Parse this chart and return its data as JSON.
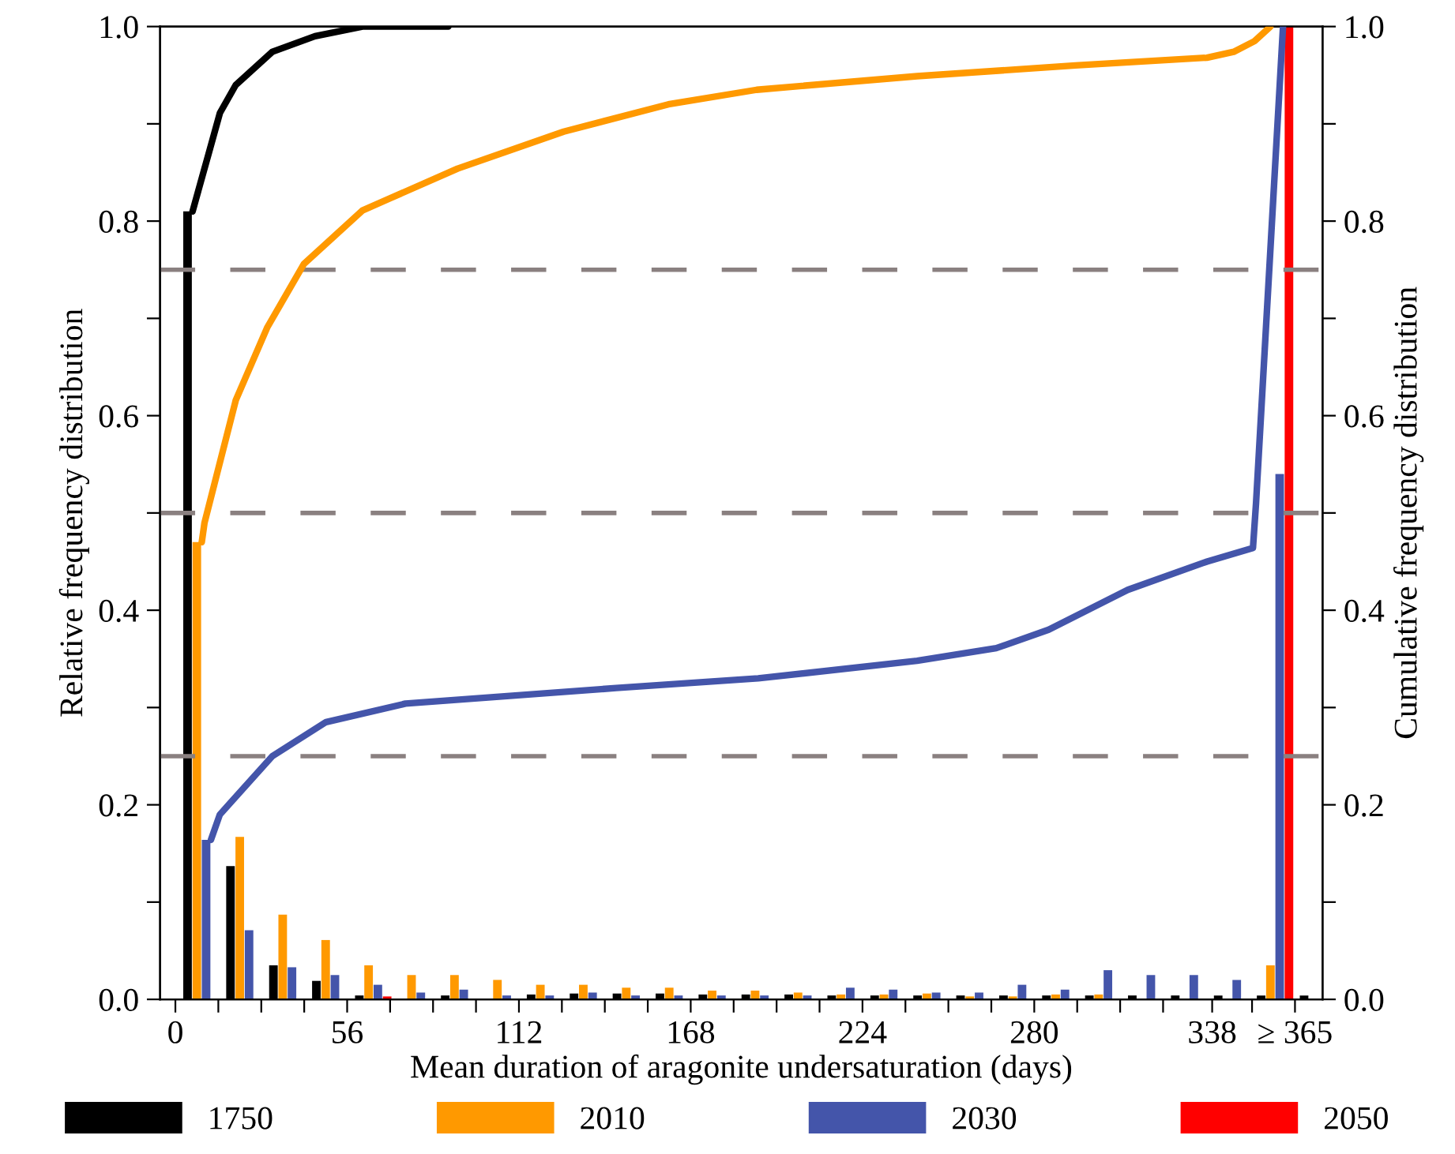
{
  "chart_data": {
    "type": "bar",
    "xlabel": "Mean duration of aragonite undersaturation (days)",
    "ylabel": "Relative frequency distribution",
    "y2label": "Cumulative frequency distribution",
    "x": [
      8.5,
      22.5,
      36.5,
      50.5,
      64.5,
      78.5,
      92.5,
      106.5,
      120.5,
      134.5,
      148.5,
      162.5,
      176.5,
      190.5,
      204.5,
      218.5,
      232.5,
      246.5,
      260.5,
      274.5,
      288.5,
      302.5,
      316.5,
      330.5,
      344.5,
      358.5,
      372.5
    ],
    "xlim": [
      -5,
      374
    ],
    "xticks": [
      {
        "value": 0,
        "label": "0"
      },
      {
        "value": 14,
        "label": null
      },
      {
        "value": 28,
        "label": null
      },
      {
        "value": 42,
        "label": null
      },
      {
        "value": 56,
        "label": "56"
      },
      {
        "value": 70,
        "label": null
      },
      {
        "value": 84,
        "label": null
      },
      {
        "value": 98,
        "label": null
      },
      {
        "value": 112,
        "label": "112"
      },
      {
        "value": 126,
        "label": null
      },
      {
        "value": 140,
        "label": null
      },
      {
        "value": 154,
        "label": null
      },
      {
        "value": 168,
        "label": "168"
      },
      {
        "value": 182,
        "label": null
      },
      {
        "value": 196,
        "label": null
      },
      {
        "value": 210,
        "label": null
      },
      {
        "value": 224,
        "label": "224"
      },
      {
        "value": 238,
        "label": null
      },
      {
        "value": 252,
        "label": null
      },
      {
        "value": 266,
        "label": null
      },
      {
        "value": 280,
        "label": "280"
      },
      {
        "value": 294,
        "label": null
      },
      {
        "value": 308,
        "label": null
      },
      {
        "value": 322,
        "label": null
      },
      {
        "value": 338,
        "label": "338"
      },
      {
        "value": 351,
        "label": null
      },
      {
        "value": 365,
        "label": "≥ 365"
      }
    ],
    "ylim": [
      0,
      1
    ],
    "yticks": [
      {
        "value": 0,
        "label": "0.0"
      },
      {
        "value": 0.1,
        "label": null
      },
      {
        "value": 0.2,
        "label": "0.2"
      },
      {
        "value": 0.3,
        "label": null
      },
      {
        "value": 0.4,
        "label": "0.4"
      },
      {
        "value": 0.5,
        "label": null
      },
      {
        "value": 0.6,
        "label": "0.6"
      },
      {
        "value": 0.7,
        "label": null
      },
      {
        "value": 0.8,
        "label": "0.8"
      },
      {
        "value": 0.9,
        "label": null
      },
      {
        "value": 1,
        "label": "1.0"
      }
    ],
    "y2lim": [
      0,
      1
    ],
    "y2ticks": [
      {
        "value": 0,
        "label": "0.0"
      },
      {
        "value": 0.1,
        "label": null
      },
      {
        "value": 0.2,
        "label": "0.2"
      },
      {
        "value": 0.3,
        "label": null
      },
      {
        "value": 0.4,
        "label": "0.4"
      },
      {
        "value": 0.5,
        "label": null
      },
      {
        "value": 0.6,
        "label": "0.6"
      },
      {
        "value": 0.7,
        "label": null
      },
      {
        "value": 0.8,
        "label": "0.8"
      },
      {
        "value": 0.9,
        "label": null
      },
      {
        "value": 1,
        "label": "1.0"
      }
    ],
    "legend": "bottom",
    "grid": false,
    "series": [
      {
        "name": "1750",
        "color": "#000000",
        "values": [
          0.81,
          0.137,
          0.035,
          0.019,
          0.004,
          null,
          0.004,
          null,
          0.005,
          0.006,
          0.006,
          0.006,
          0.005,
          0.005,
          0.005,
          0.004,
          0.004,
          0.004,
          0.004,
          0.004,
          0.004,
          0.004,
          0.004,
          0.004,
          0.004,
          0.004,
          0.004
        ]
      },
      {
        "name": "2010",
        "color": "#ff9900",
        "values": [
          0.47,
          0.167,
          0.087,
          0.061,
          0.035,
          0.025,
          0.025,
          0.02,
          0.015,
          0.015,
          0.012,
          0.012,
          0.009,
          0.009,
          0.007,
          0.005,
          0.005,
          0.006,
          0.003,
          0.003,
          0.005,
          0.005,
          0,
          0,
          0,
          0.035,
          0
        ]
      },
      {
        "name": "2030",
        "color": "#4455aa",
        "values": [
          0.164,
          0.071,
          0.033,
          0.025,
          0.015,
          0.007,
          0.01,
          0.004,
          0.004,
          0.007,
          0.004,
          0.004,
          0.004,
          0.004,
          0.004,
          0.012,
          0.01,
          0.007,
          0.007,
          0.015,
          0.01,
          0.03,
          0.025,
          0.025,
          0.02,
          0.54,
          0
        ]
      },
      {
        "name": "2050",
        "color": "#ff0000",
        "values": [
          0,
          0,
          0,
          0,
          0.003,
          0,
          0,
          0,
          0,
          0,
          0,
          0,
          0,
          0,
          0,
          0,
          0,
          0,
          0,
          0,
          0,
          0,
          0,
          0,
          0,
          1.0,
          0
        ]
      },
      {
        "type": "line",
        "axis": "y2",
        "color": "#000000",
        "x": [
          5.6,
          10.9,
          14.5,
          19.7,
          31.6,
          45.5,
          61,
          89
        ],
        "values": [
          0.81,
          0.87,
          0.911,
          0.94,
          0.974,
          0.99,
          1.0,
          1.0
        ]
      },
      {
        "type": "line",
        "axis": "y2",
        "color": "#ff9900",
        "x": [
          8.6,
          9.5,
          19.7,
          30,
          41.9,
          61,
          92,
          126.6,
          160.7,
          189.5,
          241.8,
          293.4,
          336.3,
          345,
          351.8,
          357
        ],
        "values": [
          0.47,
          0.49,
          0.616,
          0.691,
          0.756,
          0.811,
          0.854,
          0.892,
          0.92,
          0.935,
          0.949,
          0.96,
          0.968,
          0.974,
          0.985,
          1.0
        ]
      },
      {
        "type": "line",
        "axis": "y2",
        "color": "#4455aa",
        "x": [
          11.6,
          14.5,
          31.6,
          49.1,
          75,
          109,
          143.7,
          190,
          241.8,
          267.6,
          284.7,
          310.5,
          336.3,
          351.3,
          352.3,
          361.1
        ],
        "values": [
          0.164,
          0.19,
          0.25,
          0.285,
          0.304,
          0.312,
          0.32,
          0.33,
          0.348,
          0.361,
          0.38,
          0.421,
          0.45,
          0.464,
          0.51,
          1.0
        ]
      }
    ],
    "ref_lines": [
      {
        "axis": "y2",
        "value": 0.25,
        "color": "#8a8080",
        "line_style": "dashed"
      },
      {
        "axis": "y2",
        "value": 0.5,
        "color": "#8a8080",
        "line_style": "dashed"
      },
      {
        "axis": "y2",
        "value": 0.75,
        "color": "#8a8080",
        "line_style": "dashed"
      }
    ]
  }
}
